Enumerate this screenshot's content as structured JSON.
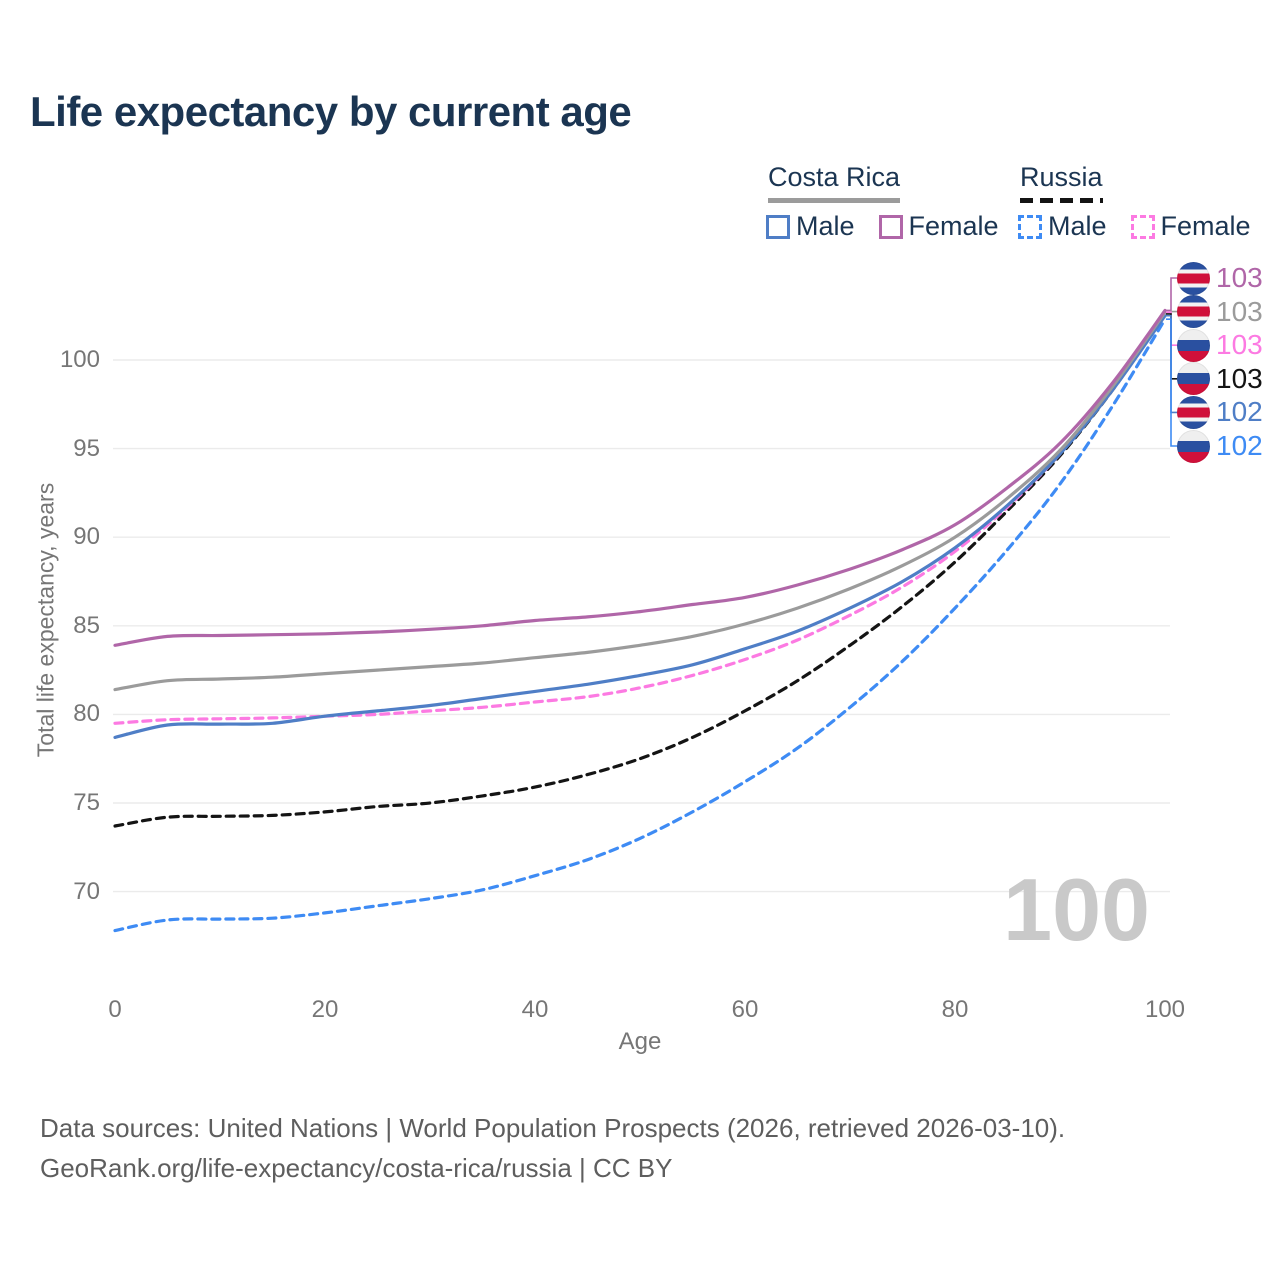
{
  "title": "Life expectancy by current age",
  "legend": {
    "groups": [
      {
        "name": "Costa Rica",
        "line_style": "solid",
        "underline_color": "#9b9b9b",
        "items": [
          {
            "label": "Male",
            "color": "#4f7ec6",
            "dashed": false
          },
          {
            "label": "Female",
            "color": "#b066a8",
            "dashed": false
          }
        ]
      },
      {
        "name": "Russia",
        "line_style": "dashed",
        "underline_color": "#141414",
        "items": [
          {
            "label": "Male",
            "color": "#3e8bf4",
            "dashed": true
          },
          {
            "label": "Female",
            "color": "#fc7ae2",
            "dashed": true
          }
        ]
      }
    ]
  },
  "chart_data": {
    "type": "line",
    "title": "Life expectancy by current age",
    "xlabel": "Age",
    "ylabel": "Total life expectancy, years",
    "x_ticks": [
      0,
      20,
      40,
      60,
      80,
      100
    ],
    "y_ticks": [
      70,
      75,
      80,
      85,
      90,
      95,
      100
    ],
    "xlim": [
      0,
      100
    ],
    "ylim": [
      66.5,
      104
    ],
    "grid": "horizontal-only",
    "legend_position": "top-right",
    "x": [
      0,
      5,
      10,
      15,
      20,
      25,
      30,
      35,
      40,
      45,
      50,
      55,
      60,
      65,
      70,
      75,
      80,
      85,
      90,
      95,
      100
    ],
    "series": [
      {
        "name": "Russia Male",
        "country": "Russia",
        "sex": "Male",
        "color": "#3e8bf4",
        "dashed": true,
        "values": [
          67.8,
          68.4,
          68.45,
          68.5,
          68.8,
          69.2,
          69.6,
          70.1,
          70.9,
          71.8,
          73.0,
          74.5,
          76.2,
          78.1,
          80.4,
          83.0,
          86.0,
          89.3,
          93.0,
          97.4,
          102.3
        ]
      },
      {
        "name": "Russia",
        "country": "Russia",
        "sex": "Both",
        "color": "#141414",
        "dashed": true,
        "values": [
          73.7,
          74.2,
          74.25,
          74.3,
          74.5,
          74.8,
          75.0,
          75.4,
          75.9,
          76.6,
          77.5,
          78.7,
          80.2,
          81.9,
          83.9,
          86.1,
          88.6,
          91.5,
          94.6,
          98.3,
          102.6
        ]
      },
      {
        "name": "Russia Female",
        "country": "Russia",
        "sex": "Female",
        "color": "#fc7ae2",
        "dashed": true,
        "values": [
          79.5,
          79.7,
          79.75,
          79.8,
          79.9,
          80.0,
          80.2,
          80.4,
          80.7,
          81.0,
          81.5,
          82.2,
          83.1,
          84.2,
          85.6,
          87.2,
          89.2,
          91.7,
          94.7,
          98.4,
          102.7
        ]
      },
      {
        "name": "Costa Rica Male",
        "country": "Costa Rica",
        "sex": "Male",
        "color": "#4f7ec6",
        "dashed": false,
        "values": [
          78.7,
          79.4,
          79.45,
          79.5,
          79.9,
          80.2,
          80.5,
          80.9,
          81.3,
          81.7,
          82.2,
          82.8,
          83.7,
          84.7,
          86.0,
          87.5,
          89.4,
          91.8,
          94.7,
          98.3,
          102.5
        ]
      },
      {
        "name": "Costa Rica",
        "country": "Costa Rica",
        "sex": "Both",
        "color": "#9b9b9b",
        "dashed": false,
        "values": [
          81.4,
          81.9,
          82.0,
          82.1,
          82.3,
          82.5,
          82.7,
          82.9,
          83.2,
          83.5,
          83.9,
          84.4,
          85.1,
          86.0,
          87.1,
          88.4,
          90.0,
          92.2,
          94.9,
          98.5,
          102.7
        ]
      },
      {
        "name": "Costa Rica Female",
        "country": "Costa Rica",
        "sex": "Female",
        "color": "#b066a8",
        "dashed": false,
        "values": [
          83.9,
          84.4,
          84.45,
          84.5,
          84.55,
          84.65,
          84.8,
          85.0,
          85.3,
          85.5,
          85.8,
          86.2,
          86.6,
          87.3,
          88.2,
          89.3,
          90.7,
          92.8,
          95.3,
          98.7,
          102.8
        ]
      }
    ],
    "end_labels": [
      {
        "series": "Costa Rica Female",
        "flag": "costa-rica",
        "value": "103",
        "color": "#b066a8"
      },
      {
        "series": "Costa Rica",
        "flag": "costa-rica",
        "value": "103",
        "color": "#9b9b9b"
      },
      {
        "series": "Russia Female",
        "flag": "russia",
        "value": "103",
        "color": "#fc7ae2"
      },
      {
        "series": "Russia",
        "flag": "russia",
        "value": "103",
        "color": "#141414"
      },
      {
        "series": "Costa Rica Male",
        "flag": "costa-rica",
        "value": "102",
        "color": "#4f7ec6"
      },
      {
        "series": "Russia Male",
        "flag": "russia",
        "value": "102",
        "color": "#3e8bf4"
      }
    ]
  },
  "watermark": "100",
  "footer": {
    "line1": "Data sources: United Nations | World Population Prospects (2026, retrieved 2026-03-10).",
    "line2": "GeoRank.org/life-expectancy/costa-rica/russia | CC BY"
  }
}
